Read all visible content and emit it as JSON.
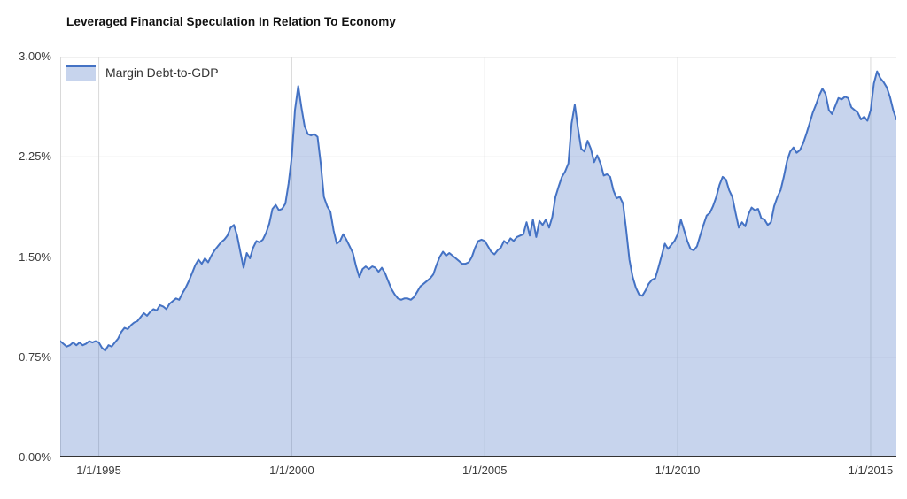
{
  "title": "Leveraged Financial Speculation In Relation To Economy",
  "legend": {
    "label": "Margin Debt-to-GDP"
  },
  "colors": {
    "line": "#4472c4",
    "fill": "rgba(68,114,196,0.30)",
    "grid_horizontal": "#e2e2e2",
    "grid_vertical": "#d9d9d9",
    "axis": "#333333",
    "tick_text": "#3c3c3c",
    "title_text": "#111111"
  },
  "chart_data": {
    "type": "area",
    "title": "Leveraged Financial Speculation In Relation To Economy",
    "xlabel": "",
    "ylabel": "",
    "ylim": [
      0,
      3.0
    ],
    "grid": true,
    "legend_position": "top-left",
    "x_tick_labels": [
      "1/1/1995",
      "1/1/2000",
      "1/1/2005",
      "1/1/2010",
      "1/1/2015"
    ],
    "x_tick_indices": [
      12,
      72,
      132,
      192,
      252
    ],
    "y_tick_labels": [
      "0.00%",
      "0.75%",
      "1.50%",
      "2.25%",
      "3.00%"
    ],
    "y_tick_values": [
      0,
      0.75,
      1.5,
      2.25,
      3.0
    ],
    "x_start": "1/1994",
    "x_frequency": "monthly",
    "series": [
      {
        "name": "Margin Debt-to-GDP",
        "unit": "%",
        "values": [
          0.87,
          0.85,
          0.83,
          0.84,
          0.86,
          0.84,
          0.86,
          0.84,
          0.85,
          0.87,
          0.86,
          0.87,
          0.86,
          0.82,
          0.8,
          0.84,
          0.83,
          0.86,
          0.89,
          0.94,
          0.97,
          0.96,
          0.99,
          1.01,
          1.02,
          1.05,
          1.08,
          1.06,
          1.09,
          1.11,
          1.1,
          1.14,
          1.13,
          1.11,
          1.15,
          1.17,
          1.19,
          1.18,
          1.23,
          1.27,
          1.32,
          1.38,
          1.44,
          1.48,
          1.45,
          1.49,
          1.46,
          1.51,
          1.55,
          1.58,
          1.61,
          1.63,
          1.66,
          1.72,
          1.74,
          1.66,
          1.54,
          1.42,
          1.53,
          1.49,
          1.57,
          1.62,
          1.61,
          1.63,
          1.68,
          1.75,
          1.86,
          1.89,
          1.85,
          1.86,
          1.9,
          2.05,
          2.25,
          2.6,
          2.78,
          2.62,
          2.48,
          2.42,
          2.41,
          2.42,
          2.4,
          2.2,
          1.95,
          1.88,
          1.84,
          1.7,
          1.6,
          1.62,
          1.67,
          1.63,
          1.58,
          1.53,
          1.43,
          1.35,
          1.41,
          1.43,
          1.41,
          1.43,
          1.42,
          1.39,
          1.42,
          1.38,
          1.32,
          1.26,
          1.22,
          1.19,
          1.18,
          1.19,
          1.19,
          1.18,
          1.2,
          1.24,
          1.28,
          1.3,
          1.32,
          1.34,
          1.37,
          1.44,
          1.5,
          1.54,
          1.51,
          1.53,
          1.51,
          1.49,
          1.47,
          1.45,
          1.45,
          1.46,
          1.5,
          1.57,
          1.62,
          1.63,
          1.62,
          1.58,
          1.54,
          1.52,
          1.55,
          1.57,
          1.62,
          1.6,
          1.64,
          1.62,
          1.65,
          1.66,
          1.67,
          1.76,
          1.66,
          1.78,
          1.65,
          1.77,
          1.74,
          1.78,
          1.72,
          1.8,
          1.95,
          2.03,
          2.1,
          2.14,
          2.2,
          2.5,
          2.64,
          2.46,
          2.31,
          2.29,
          2.37,
          2.31,
          2.21,
          2.26,
          2.2,
          2.11,
          2.12,
          2.1,
          2.0,
          1.94,
          1.95,
          1.9,
          1.7,
          1.48,
          1.35,
          1.27,
          1.22,
          1.21,
          1.25,
          1.3,
          1.33,
          1.34,
          1.42,
          1.51,
          1.6,
          1.56,
          1.59,
          1.62,
          1.67,
          1.78,
          1.7,
          1.62,
          1.56,
          1.55,
          1.58,
          1.66,
          1.74,
          1.81,
          1.83,
          1.88,
          1.95,
          2.04,
          2.1,
          2.08,
          2.0,
          1.95,
          1.83,
          1.72,
          1.76,
          1.73,
          1.82,
          1.87,
          1.85,
          1.86,
          1.79,
          1.78,
          1.74,
          1.76,
          1.88,
          1.95,
          2.0,
          2.1,
          2.22,
          2.29,
          2.32,
          2.28,
          2.3,
          2.35,
          2.42,
          2.5,
          2.58,
          2.64,
          2.71,
          2.76,
          2.72,
          2.6,
          2.57,
          2.63,
          2.69,
          2.68,
          2.7,
          2.69,
          2.62,
          2.6,
          2.58,
          2.53,
          2.55,
          2.52,
          2.6,
          2.8,
          2.89,
          2.84,
          2.81,
          2.77,
          2.7,
          2.6,
          2.53
        ]
      }
    ]
  }
}
